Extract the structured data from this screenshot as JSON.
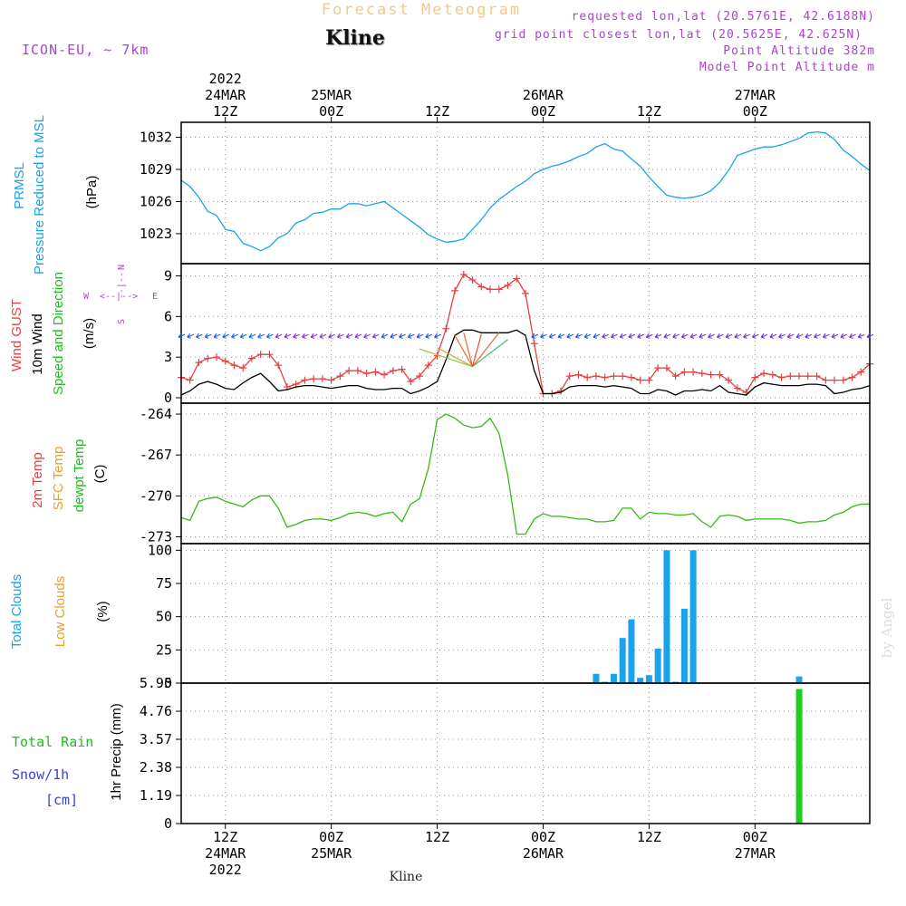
{
  "header": {
    "title": "Forecast Meteogram",
    "location": "Kline",
    "model": "ICON-EU, ~ 7km",
    "requested": "requested lon,lat (20.5761E, 42.6188N)",
    "grid_point": "grid point closest lon,lat (20.5625E, 42.625N)",
    "point_altitude": "Point Altitude 382m",
    "model_altitude": "Model Point Altitude m",
    "credit": "by Angel",
    "footer_location": "Kline"
  },
  "time_axis": {
    "top_labels": [
      {
        "line1": "2022",
        "line2": "24MAR",
        "line3": "12Z"
      },
      {
        "line1": "",
        "line2": "25MAR",
        "line3": "00Z"
      },
      {
        "line1": "",
        "line2": "",
        "line3": "12Z"
      },
      {
        "line1": "",
        "line2": "26MAR",
        "line3": "00Z"
      },
      {
        "line1": "",
        "line2": "",
        "line3": "12Z"
      },
      {
        "line1": "",
        "line2": "27MAR",
        "line3": "00Z"
      }
    ],
    "bottom_labels": [
      {
        "line1": "12Z",
        "line2": "24MAR",
        "line3": "2022"
      },
      {
        "line1": "00Z",
        "line2": "25MAR",
        "line3": ""
      },
      {
        "line1": "12Z",
        "line2": "",
        "line3": ""
      },
      {
        "line1": "00Z",
        "line2": "26MAR",
        "line3": ""
      },
      {
        "line1": "12Z",
        "line2": "",
        "line3": ""
      },
      {
        "line1": "00Z",
        "line2": "27MAR",
        "line3": ""
      }
    ],
    "tick_hours": [
      12,
      24,
      36,
      48,
      60,
      72
    ]
  },
  "panels": {
    "pressure": {
      "labels": [
        "PRMSL",
        "Pressure Reduced to MSL"
      ],
      "unit": "(hPa)",
      "color": "#1aa3e8"
    },
    "wind": {
      "labels": [
        "Wind GUST",
        "10m Wind",
        "Speed and Direction"
      ],
      "label_colors": [
        "#e84040",
        "#000000",
        "#22bb22"
      ],
      "unit": "(m/s)",
      "compass": {
        "n": "N",
        "s": "S",
        "w": "W",
        "e": "E"
      }
    },
    "temp": {
      "labels": [
        "2m Temp",
        "SFC Temp",
        "dewpt Temp"
      ],
      "label_colors": [
        "#e84040",
        "#e8a030",
        "#22bb22"
      ],
      "unit": "(C)"
    },
    "clouds": {
      "labels": [
        "Total Clouds",
        "Low Clouds"
      ],
      "label_colors": [
        "#1aa3e8",
        "#e8a030"
      ],
      "unit": "(%)"
    },
    "precip": {
      "labels": [
        "Total Rain",
        "Snow/1h",
        "[cm]"
      ],
      "label_colors": [
        "#22bb22",
        "#3344dd",
        "#3344dd"
      ],
      "unit": "1hr Precip (mm)"
    }
  },
  "colors": {
    "pressure": "#1aa3e8",
    "gust": "#e84040",
    "wind": "#000000",
    "dewpoint": "#33bb11",
    "total_clouds": "#1aa3e8",
    "rain": "#22cc22",
    "title": "#f2c98a",
    "purple": "#aa44cc"
  },
  "chart_data": [
    {
      "type": "line",
      "ylabel": "Pressure Reduced to MSL (hPa)",
      "yticks": [
        1023,
        1026,
        1029,
        1032
      ],
      "ylim": [
        1020.2,
        1033.4
      ],
      "xlim": [
        7,
        85
      ],
      "grid": true,
      "series": [
        {
          "name": "PRMSL",
          "color": "#1aa3e8",
          "x": [
            7,
            8,
            9,
            10,
            11,
            12,
            13,
            14,
            15,
            16,
            17,
            18,
            19,
            20,
            21,
            22,
            23,
            24,
            25,
            26,
            27,
            28,
            29,
            30,
            31,
            32,
            33,
            34,
            35,
            36,
            37,
            38,
            39,
            40,
            41,
            42,
            43,
            44,
            45,
            46,
            47,
            48,
            49,
            50,
            51,
            52,
            53,
            54,
            55,
            56,
            57,
            58,
            59,
            60,
            61,
            62,
            63,
            64,
            65,
            66,
            67,
            68,
            69,
            70,
            71,
            72,
            73,
            74,
            75,
            76,
            77,
            78,
            79,
            80,
            81,
            82,
            83,
            84,
            85
          ],
          "y": [
            1028.0,
            1027.4,
            1026.4,
            1025.1,
            1024.7,
            1023.4,
            1023.2,
            1022.1,
            1021.8,
            1021.4,
            1021.8,
            1022.6,
            1023.0,
            1024.0,
            1024.3,
            1024.9,
            1025.0,
            1025.3,
            1025.3,
            1025.8,
            1025.8,
            1025.6,
            1025.8,
            1026.0,
            1025.4,
            1024.8,
            1024.2,
            1023.6,
            1022.9,
            1022.5,
            1022.2,
            1022.3,
            1022.5,
            1023.4,
            1024.3,
            1025.4,
            1026.2,
            1026.8,
            1027.4,
            1027.9,
            1028.6,
            1029.0,
            1029.3,
            1029.5,
            1029.8,
            1030.2,
            1030.5,
            1031.1,
            1031.4,
            1030.9,
            1030.7,
            1030.0,
            1029.3,
            1028.3,
            1027.4,
            1026.6,
            1026.4,
            1026.3,
            1026.4,
            1026.6,
            1027.0,
            1027.8,
            1028.9,
            1030.3,
            1030.6,
            1030.9,
            1031.1,
            1031.1,
            1031.3,
            1031.6,
            1031.9,
            1032.4,
            1032.5,
            1032.4,
            1031.8,
            1030.8,
            1030.2,
            1029.5,
            1028.9
          ]
        }
      ]
    },
    {
      "type": "line",
      "ylabel": "(m/s)",
      "yticks": [
        0,
        3,
        6,
        9
      ],
      "ylim": [
        -0.4,
        9.9
      ],
      "xlim": [
        7,
        85
      ],
      "grid": true,
      "series": [
        {
          "name": "Wind GUST",
          "color": "#e84040",
          "marker": "+",
          "x": [
            7,
            8,
            9,
            10,
            11,
            12,
            13,
            14,
            15,
            16,
            17,
            18,
            19,
            20,
            21,
            22,
            23,
            24,
            25,
            26,
            27,
            28,
            29,
            30,
            31,
            32,
            33,
            34,
            35,
            36,
            37,
            38,
            39,
            40,
            41,
            42,
            43,
            44,
            45,
            46,
            47,
            48,
            49,
            50,
            51,
            52,
            53,
            54,
            55,
            56,
            57,
            58,
            59,
            60,
            61,
            62,
            63,
            64,
            65,
            66,
            67,
            68,
            69,
            70,
            71,
            72,
            73,
            74,
            75,
            76,
            77,
            78,
            79,
            80,
            81,
            82,
            83,
            84,
            85
          ],
          "y": [
            1.5,
            1.3,
            2.6,
            2.9,
            3.0,
            2.7,
            2.4,
            2.2,
            2.9,
            3.2,
            3.2,
            2.4,
            0.8,
            1.0,
            1.3,
            1.4,
            1.4,
            1.3,
            1.6,
            2.0,
            2.0,
            1.8,
            1.9,
            1.7,
            2.0,
            2.1,
            1.2,
            1.6,
            2.4,
            3.1,
            5.1,
            7.9,
            9.1,
            8.7,
            8.2,
            8.0,
            8.0,
            8.3,
            8.8,
            7.7,
            4.0,
            0.3,
            0.3,
            0.5,
            1.6,
            1.7,
            1.5,
            1.6,
            1.5,
            1.6,
            1.6,
            1.5,
            1.3,
            1.3,
            2.2,
            2.2,
            1.6,
            1.9,
            1.9,
            1.8,
            1.7,
            1.7,
            1.3,
            0.7,
            0.4,
            1.5,
            1.8,
            1.7,
            1.5,
            1.6,
            1.6,
            1.6,
            1.6,
            1.3,
            1.3,
            1.3,
            1.5,
            1.9,
            2.5
          ]
        },
        {
          "name": "10m Wind",
          "color": "#000000",
          "x": [
            7,
            8,
            9,
            10,
            11,
            12,
            13,
            14,
            15,
            16,
            17,
            18,
            19,
            20,
            21,
            22,
            23,
            24,
            25,
            26,
            27,
            28,
            29,
            30,
            31,
            32,
            33,
            34,
            35,
            36,
            37,
            38,
            39,
            40,
            41,
            42,
            43,
            44,
            45,
            46,
            47,
            48,
            49,
            50,
            51,
            52,
            53,
            54,
            55,
            56,
            57,
            58,
            59,
            60,
            61,
            62,
            63,
            64,
            65,
            66,
            67,
            68,
            69,
            70,
            71,
            72,
            73,
            74,
            75,
            76,
            77,
            78,
            79,
            80,
            81,
            82,
            83,
            84,
            85
          ],
          "y": [
            0.2,
            0.5,
            1.0,
            1.2,
            1.0,
            0.7,
            0.6,
            1.1,
            1.5,
            1.8,
            1.2,
            0.5,
            0.6,
            0.8,
            0.9,
            0.9,
            0.8,
            0.7,
            0.8,
            0.9,
            0.9,
            0.7,
            0.6,
            0.6,
            0.7,
            0.7,
            0.3,
            0.5,
            0.8,
            1.2,
            2.8,
            4.6,
            5.0,
            5.0,
            4.8,
            4.8,
            4.8,
            4.8,
            5.0,
            4.6,
            2.0,
            0.3,
            0.3,
            0.4,
            0.8,
            0.9,
            0.9,
            0.9,
            0.8,
            0.9,
            0.8,
            0.7,
            0.3,
            0.3,
            0.6,
            0.5,
            0.2,
            0.5,
            0.5,
            0.6,
            0.5,
            0.9,
            0.4,
            0.3,
            0.2,
            0.8,
            1.1,
            1.0,
            0.9,
            0.9,
            0.9,
            1.0,
            1.0,
            0.9,
            0.3,
            0.4,
            0.6,
            0.7,
            0.9
          ]
        }
      ]
    },
    {
      "type": "line",
      "ylabel": "(C)",
      "yticks": [
        -273,
        -270,
        -267,
        -264
      ],
      "ylim": [
        -273.5,
        -263.2
      ],
      "xlim": [
        7,
        85
      ],
      "grid": true,
      "series": [
        {
          "name": "dewpt Temp",
          "color": "#33bb11",
          "x": [
            7,
            8,
            9,
            10,
            11,
            12,
            13,
            14,
            15,
            16,
            17,
            18,
            19,
            20,
            21,
            22,
            23,
            24,
            25,
            26,
            27,
            28,
            29,
            30,
            31,
            32,
            33,
            34,
            35,
            36,
            37,
            38,
            39,
            40,
            41,
            42,
            43,
            44,
            45,
            46,
            47,
            48,
            49,
            50,
            51,
            52,
            53,
            54,
            55,
            56,
            57,
            58,
            59,
            60,
            61,
            62,
            63,
            64,
            65,
            66,
            67,
            68,
            69,
            70,
            71,
            72,
            73,
            74,
            75,
            76,
            77,
            78,
            79,
            80,
            81,
            82,
            83,
            84,
            85
          ],
          "y": [
            -271.6,
            -271.8,
            -270.4,
            -270.2,
            -270.1,
            -270.4,
            -270.6,
            -270.8,
            -270.3,
            -270.0,
            -270.0,
            -270.9,
            -272.3,
            -272.1,
            -271.8,
            -271.7,
            -271.7,
            -271.8,
            -271.6,
            -271.3,
            -271.2,
            -271.3,
            -271.5,
            -271.3,
            -271.2,
            -271.9,
            -270.6,
            -270.2,
            -268.0,
            -264.4,
            -264.0,
            -264.3,
            -264.8,
            -265.0,
            -264.9,
            -264.3,
            -265.4,
            -268.5,
            -272.8,
            -272.8,
            -271.7,
            -271.3,
            -271.5,
            -271.5,
            -271.6,
            -271.7,
            -271.7,
            -271.9,
            -271.9,
            -271.8,
            -270.9,
            -270.9,
            -271.7,
            -271.2,
            -271.3,
            -271.3,
            -271.4,
            -271.4,
            -271.3,
            -271.9,
            -272.3,
            -271.5,
            -271.4,
            -271.5,
            -271.8,
            -271.7,
            -271.7,
            -271.7,
            -271.7,
            -271.8,
            -272.0,
            -271.9,
            -271.9,
            -271.8,
            -271.4,
            -271.2,
            -270.8,
            -270.6,
            -270.6
          ]
        }
      ]
    },
    {
      "type": "bar",
      "ylabel": "(%)",
      "yticks": [
        0,
        25,
        50,
        75,
        100
      ],
      "ylim": [
        0,
        105
      ],
      "xlim": [
        7,
        85
      ],
      "grid": true,
      "series": [
        {
          "name": "Total Clouds",
          "color": "#1aa3e8",
          "x": [
            54,
            55,
            56,
            57,
            58,
            59,
            60,
            61,
            62,
            63,
            64,
            65,
            77
          ],
          "y": [
            7,
            1,
            7,
            34,
            48,
            4,
            6,
            26,
            100,
            1,
            56,
            100,
            5
          ]
        }
      ]
    },
    {
      "type": "bar",
      "ylabel": "1hr Precip (mm)",
      "yticks": [
        0,
        1.19,
        2.38,
        3.57,
        4.76,
        5.95
      ],
      "ylim": [
        0,
        5.95
      ],
      "xlim": [
        7,
        85
      ],
      "grid": true,
      "series": [
        {
          "name": "Total Rain",
          "color": "#22cc22",
          "x": [
            77
          ],
          "y": [
            5.7
          ]
        }
      ]
    }
  ]
}
